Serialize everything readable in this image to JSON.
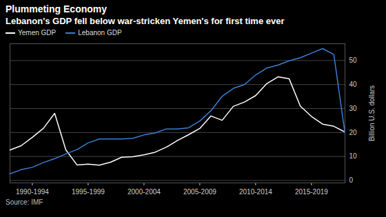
{
  "chart_data": {
    "type": "line",
    "title": "Plummeting Economy",
    "subtitle": "Lebanon's GDP fell below war-stricken Yemen's for first time ever",
    "source": "Source: IMF",
    "ylabel": "Billion U.S. dollars",
    "x": [
      1990,
      1991,
      1992,
      1993,
      1994,
      1995,
      1996,
      1997,
      1998,
      1999,
      2000,
      2001,
      2002,
      2003,
      2004,
      2005,
      2006,
      2007,
      2008,
      2009,
      2010,
      2011,
      2012,
      2013,
      2014,
      2015,
      2016,
      2017,
      2018,
      2019,
      2020
    ],
    "series": [
      {
        "name": "Yemen GDP",
        "color": "#ffffff",
        "values": [
          12.7,
          14.5,
          18.0,
          21.8,
          28.0,
          12.8,
          6.5,
          6.8,
          6.4,
          7.6,
          9.7,
          9.9,
          10.7,
          11.8,
          13.9,
          16.7,
          19.1,
          21.7,
          26.9,
          25.1,
          30.9,
          32.7,
          35.4,
          40.4,
          43.2,
          42.4,
          31.0,
          26.7,
          23.5,
          22.6,
          20.2
        ]
      },
      {
        "name": "Lebanon GDP",
        "color": "#3a7fd5",
        "values": [
          2.8,
          4.5,
          5.5,
          7.5,
          9.1,
          11.1,
          12.9,
          15.7,
          17.3,
          17.3,
          17.3,
          17.6,
          19.0,
          19.8,
          21.5,
          21.5,
          22.0,
          24.8,
          29.1,
          35.1,
          38.4,
          40.0,
          44.0,
          46.9,
          48.1,
          49.9,
          51.2,
          53.1,
          55.0,
          52.5,
          19.6
        ]
      }
    ],
    "xlim": [
      1990,
      2020
    ],
    "xticks": [
      {
        "value": 1992,
        "label": "1990-1994"
      },
      {
        "value": 1997,
        "label": "1995-1999"
      },
      {
        "value": 2002,
        "label": "2000-2004"
      },
      {
        "value": 2007,
        "label": "2005-2009"
      },
      {
        "value": 2012,
        "label": "2010-2014"
      },
      {
        "value": 2017,
        "label": "2015-2019"
      }
    ],
    "ylim": [
      -1,
      57
    ],
    "yticks": [
      0,
      10,
      20,
      30,
      40,
      50
    ],
    "grid": true,
    "legend": "top-left"
  }
}
